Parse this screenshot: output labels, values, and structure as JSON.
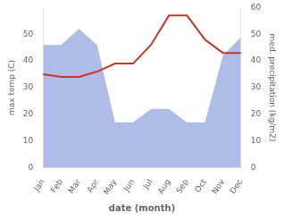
{
  "chart_data": {
    "type": "line",
    "xlabel": "date (month)",
    "ylabel": "max temp (C)",
    "y2label": "med. precipitation (kg/m2)",
    "categories": [
      "Jan",
      "Feb",
      "Mar",
      "Apr",
      "May",
      "Jun",
      "Jul",
      "Aug",
      "Sep",
      "Oct",
      "Nov",
      "Dec"
    ],
    "series": [
      {
        "type": "area",
        "color": "#b0bce8",
        "values": [
          46,
          46,
          52,
          46,
          17,
          17,
          22,
          22,
          17,
          17,
          42,
          49
        ]
      },
      {
        "type": "line",
        "color": "#c0392b",
        "axis": "y2",
        "values": [
          35,
          34,
          34,
          36,
          39,
          39,
          46,
          57,
          57,
          48,
          43,
          43
        ]
      }
    ],
    "ylim": [
      0,
      60
    ],
    "yticks": [
      0,
      10,
      20,
      30,
      40,
      50
    ],
    "y2lim": [
      0,
      60
    ],
    "y2ticks": [
      0,
      10,
      20,
      30,
      40,
      50,
      60
    ],
    "grid": false
  }
}
